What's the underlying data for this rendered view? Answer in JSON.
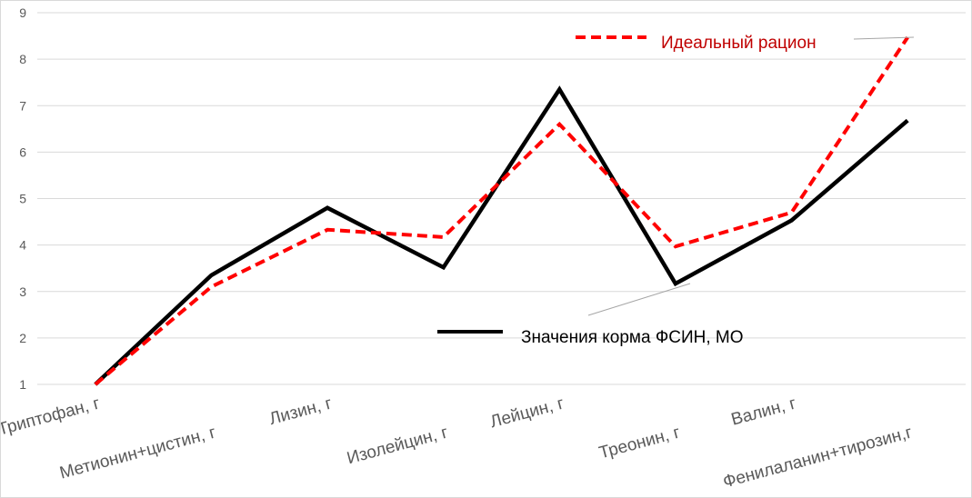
{
  "chart_data": {
    "type": "line",
    "title": "",
    "xlabel": "",
    "ylabel": "",
    "ylim": [
      1,
      9
    ],
    "yticks": [
      "1",
      "2",
      "3",
      "4",
      "5",
      "6",
      "7",
      "8",
      "9"
    ],
    "grid": true,
    "categories": [
      "Триптофан, г",
      "Метионин+цистин, г",
      "Лизин, г",
      "Изолейцин, г",
      "Лейцин, г",
      "Треонин, г",
      "Валин, г",
      "Фенилаланин+тирозин,г"
    ],
    "series": [
      {
        "name": "Идеальный рацион",
        "color": "#ff0000",
        "style": "dashed",
        "values": [
          1.0,
          3.1,
          4.33,
          4.17,
          6.6,
          3.97,
          4.7,
          8.47
        ]
      },
      {
        "name": "Значения корма ФСИН, МО",
        "color": "#000000",
        "style": "solid",
        "values": [
          1.0,
          3.35,
          4.8,
          3.52,
          7.35,
          3.17,
          4.53,
          6.68
        ]
      }
    ],
    "legend": "labels next to lines with leader lines"
  }
}
